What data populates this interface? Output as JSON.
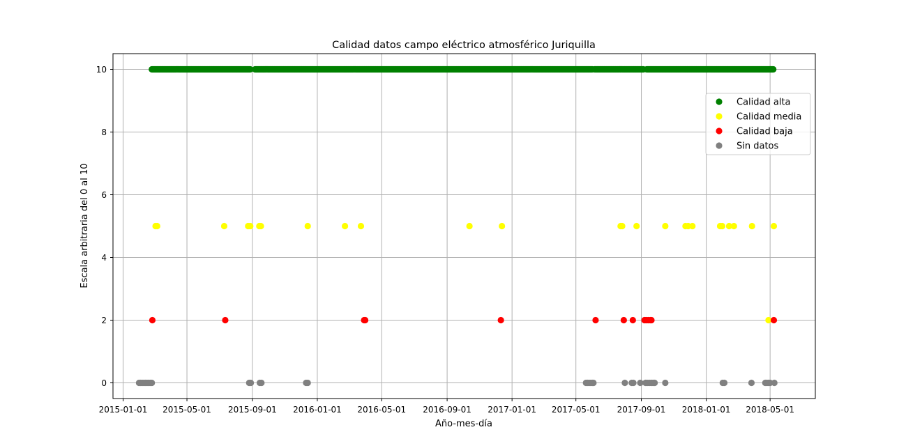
{
  "chart_data": {
    "type": "scatter",
    "title": "Calidad datos campo eléctrico atmosférico Juriquilla",
    "xlabel": "Año-mes-día",
    "ylabel": "Escala arbitraria del 0 al 10",
    "xlim": [
      "2014-12-13",
      "2018-07-25"
    ],
    "ylim": [
      -0.5,
      10.5
    ],
    "xticks": [
      "2015-01-01",
      "2015-05-01",
      "2015-09-01",
      "2016-01-01",
      "2016-05-01",
      "2016-09-01",
      "2017-01-01",
      "2017-05-01",
      "2017-09-01",
      "2018-01-01",
      "2018-05-01"
    ],
    "yticks": [
      0,
      2,
      4,
      6,
      8,
      10
    ],
    "grid": true,
    "legend_position": "upper right",
    "series": [
      {
        "name": "Calidad alta",
        "color": "#008000",
        "ranges": [
          [
            "2015-02-24",
            "2015-08-28"
          ],
          [
            "2015-09-06",
            "2017-06-01"
          ],
          [
            "2017-06-05",
            "2017-09-05"
          ],
          [
            "2017-09-11",
            "2018-05-07"
          ]
        ],
        "y": 10
      },
      {
        "name": "Calidad media",
        "color": "#ffff00",
        "x": [
          "2015-03-03",
          "2015-03-06",
          "2015-07-10",
          "2015-08-24",
          "2015-08-28",
          "2015-09-14",
          "2015-09-17",
          "2015-12-14",
          "2016-02-22",
          "2016-03-23",
          "2016-10-13",
          "2016-12-13",
          "2017-07-24",
          "2017-07-27",
          "2017-08-23",
          "2017-10-16",
          "2017-11-23",
          "2017-11-28",
          "2017-12-06",
          "2018-01-27",
          "2018-01-31",
          "2018-02-13",
          "2018-02-22",
          "2018-03-28",
          "2018-04-28",
          "2018-05-08"
        ],
        "y": [
          5,
          5,
          5,
          5,
          5,
          5,
          5,
          5,
          5,
          5,
          5,
          5,
          5,
          5,
          5,
          5,
          5,
          5,
          5,
          5,
          5,
          5,
          5,
          5,
          2,
          5
        ]
      },
      {
        "name": "Calidad baja",
        "color": "#ff0000",
        "x": [
          "2015-02-25",
          "2015-07-12",
          "2016-03-29",
          "2016-03-31",
          "2016-12-11",
          "2017-06-07",
          "2017-07-30",
          "2017-08-16",
          "2017-09-07",
          "2017-09-10",
          "2017-09-14",
          "2017-09-18",
          "2017-09-20",
          "2018-05-08"
        ],
        "y": [
          2,
          2,
          2,
          2,
          2,
          2,
          2,
          2,
          2,
          2,
          2,
          2,
          2,
          2
        ]
      },
      {
        "name": "Sin datos",
        "color": "#808080",
        "x": [
          "2015-01-31",
          "2015-02-03",
          "2015-02-06",
          "2015-02-09",
          "2015-02-12",
          "2015-02-15",
          "2015-02-18",
          "2015-02-21",
          "2015-02-24",
          "2015-08-26",
          "2015-08-29",
          "2015-09-15",
          "2015-09-18",
          "2015-12-11",
          "2015-12-14",
          "2017-05-20",
          "2017-05-23",
          "2017-05-26",
          "2017-05-29",
          "2017-06-01",
          "2017-06-03",
          "2017-08-01",
          "2017-08-14",
          "2017-08-17",
          "2017-08-30",
          "2017-09-09",
          "2017-09-12",
          "2017-09-16",
          "2017-09-20",
          "2017-09-23",
          "2017-09-26",
          "2017-10-16",
          "2018-02-01",
          "2018-02-04",
          "2018-03-27",
          "2018-04-22",
          "2018-04-25",
          "2018-04-28",
          "2018-05-01",
          "2018-05-09"
        ],
        "y": [
          0,
          0,
          0,
          0,
          0,
          0,
          0,
          0,
          0,
          0,
          0,
          0,
          0,
          0,
          0,
          0,
          0,
          0,
          0,
          0,
          0,
          0,
          0,
          0,
          0,
          0,
          0,
          0,
          0,
          0,
          0,
          0,
          0,
          0,
          0,
          0,
          0,
          0,
          0,
          0
        ]
      }
    ]
  }
}
